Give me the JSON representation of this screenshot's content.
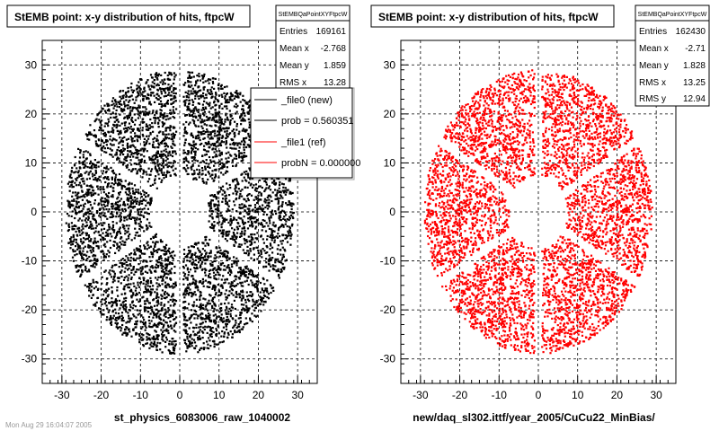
{
  "chart_data": [
    {
      "type": "scatter",
      "title": "StEMB point: x-y distribution of hits, ftpcW",
      "xlabel": "st_physics_6083006_raw_1040002",
      "ylabel": "",
      "xlim": [
        -35,
        35
      ],
      "ylim": [
        -35,
        35
      ],
      "xticks": [
        -30,
        -20,
        -10,
        0,
        10,
        20,
        30
      ],
      "yticks": [
        -30,
        -20,
        -10,
        0,
        10,
        20,
        30
      ],
      "grid": true,
      "color": "#000000",
      "distribution": {
        "inner_radius": 7.5,
        "outer_radius": 29,
        "gap_angles_deg": [
          90,
          30,
          -30,
          -90,
          -150,
          150
        ]
      },
      "stats": {
        "name": "StEMBQaPointXYFtpcW",
        "rows": [
          {
            "label": "Entries",
            "value": "169161"
          },
          {
            "label": "Mean x",
            "value": "-2.768"
          },
          {
            "label": "Mean y",
            "value": "1.859"
          },
          {
            "label": "RMS x",
            "value": "13.28"
          }
        ]
      },
      "legend": {
        "position": "top-right",
        "entries": [
          {
            "label": "_file0 (new)",
            "color": "#000000"
          },
          {
            "label": "prob = 0.560351",
            "color": "#000000"
          },
          {
            "label": "_file1 (ref)",
            "color": "#ff0000"
          },
          {
            "label": "probN = 0.000000",
            "color": "#ff0000"
          }
        ]
      }
    },
    {
      "type": "scatter",
      "title": "StEMB point: x-y distribution of hits, ftpcW",
      "xlabel": "new/daq_sl302.ittf/year_2005/CuCu22_MinBias/",
      "ylabel": "",
      "xlim": [
        -35,
        35
      ],
      "ylim": [
        -35,
        35
      ],
      "xticks": [
        -30,
        -20,
        -10,
        0,
        10,
        20,
        30
      ],
      "yticks": [
        -30,
        -20,
        -10,
        0,
        10,
        20,
        30
      ],
      "grid": true,
      "color": "#ff0000",
      "distribution": {
        "inner_radius": 7.5,
        "outer_radius": 29,
        "gap_angles_deg": [
          90,
          30,
          -30,
          -90,
          -150,
          150
        ]
      },
      "stats": {
        "name": "StEMBQaPointXYFtpcW",
        "rows": [
          {
            "label": "Entries",
            "value": "162430"
          },
          {
            "label": "Mean x",
            "value": "-2.71"
          },
          {
            "label": "Mean y",
            "value": "1.828"
          },
          {
            "label": "RMS x",
            "value": "13.25"
          },
          {
            "label": "RMS y",
            "value": "12.94"
          }
        ]
      }
    }
  ],
  "footer_text": "Mon Aug 29 16:04:07 2005"
}
